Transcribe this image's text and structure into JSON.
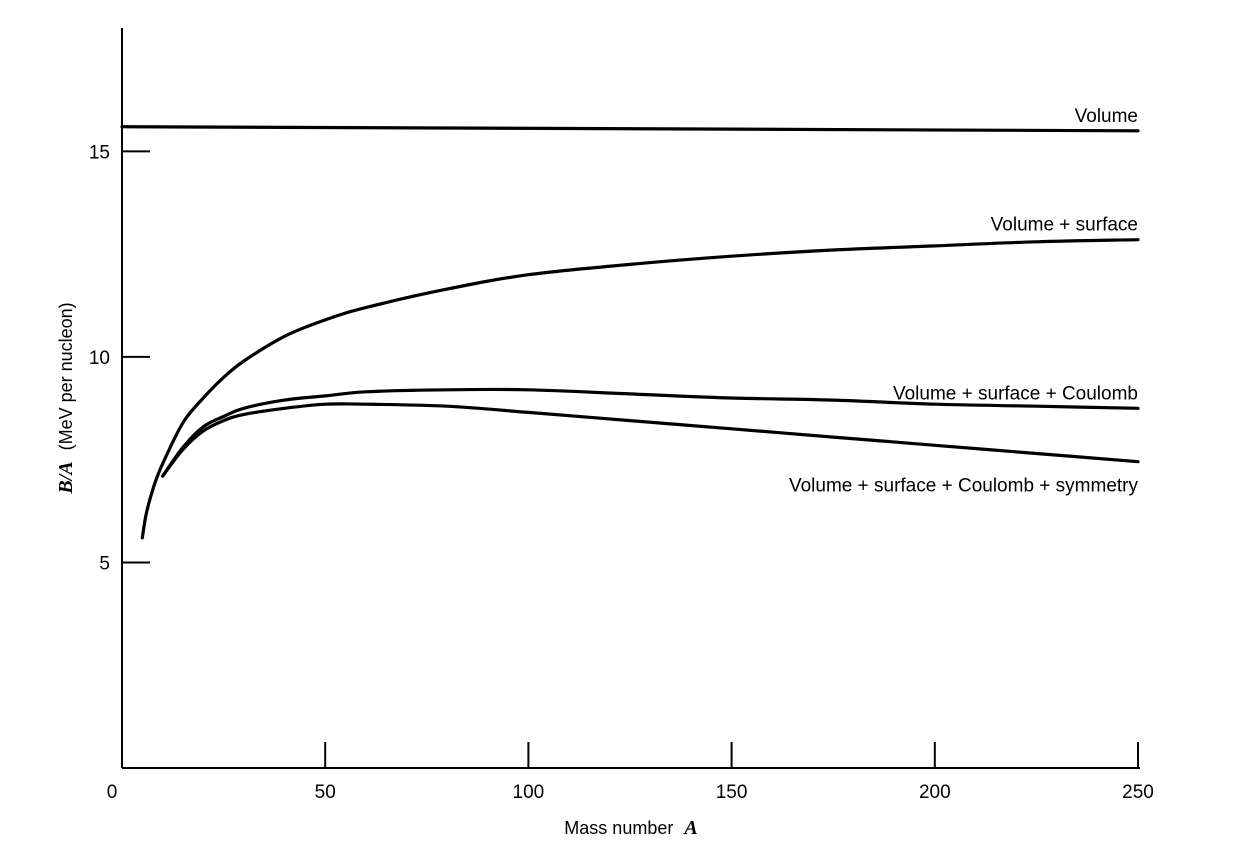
{
  "chart_data": {
    "type": "line",
    "title": "",
    "xlabel": {
      "text": "Mass number",
      "symbol": "A"
    },
    "ylabel": {
      "symbol": "B/A",
      "text": "(MeV per nucleon)"
    },
    "xlim": [
      0,
      250
    ],
    "ylim": [
      0,
      18
    ],
    "x_ticks": [
      0,
      50,
      100,
      150,
      200,
      250
    ],
    "y_ticks": [
      5,
      10,
      15
    ],
    "grid": false,
    "legend": "none",
    "series": [
      {
        "name": "Volume",
        "x": [
          0,
          250
        ],
        "y": [
          15.6,
          15.5
        ]
      },
      {
        "name": "Volume + surface",
        "x": [
          5,
          6,
          8,
          10,
          15,
          20,
          25,
          30,
          40,
          50,
          60,
          80,
          100,
          125,
          150,
          175,
          200,
          225,
          250
        ],
        "y": [
          5.6,
          6.2,
          6.9,
          7.4,
          8.4,
          9.0,
          9.5,
          9.9,
          10.5,
          10.9,
          11.2,
          11.65,
          12.0,
          12.25,
          12.45,
          12.6,
          12.7,
          12.8,
          12.85
        ]
      },
      {
        "name": "Volume + surface + Coulomb",
        "x": [
          10,
          15,
          20,
          25,
          30,
          40,
          50,
          60,
          80,
          100,
          125,
          150,
          175,
          200,
          225,
          250
        ],
        "y": [
          7.1,
          7.8,
          8.3,
          8.55,
          8.75,
          8.95,
          9.05,
          9.15,
          9.2,
          9.2,
          9.1,
          9.0,
          8.95,
          8.85,
          8.8,
          8.75
        ]
      },
      {
        "name": "Volume + surface + Coulomb + symmetry",
        "x": [
          10,
          15,
          20,
          25,
          30,
          40,
          50,
          60,
          80,
          100,
          125,
          150,
          175,
          200,
          225,
          250
        ],
        "y": [
          7.1,
          7.75,
          8.2,
          8.45,
          8.6,
          8.75,
          8.85,
          8.85,
          8.8,
          8.65,
          8.45,
          8.25,
          8.05,
          7.85,
          7.65,
          7.45
        ]
      }
    ],
    "annotations": [
      {
        "text": "Volume",
        "x": 250,
        "y": 15.5,
        "position": "above-end"
      },
      {
        "text": "Volume + surface",
        "x": 250,
        "y": 12.85,
        "position": "above-end"
      },
      {
        "text": "Volume + surface + Coulomb",
        "x": 250,
        "y": 8.75,
        "position": "above-end"
      },
      {
        "text": "Volume + surface + Coulomb + symmetry",
        "x": 250,
        "y": 7.45,
        "position": "below-end"
      }
    ]
  }
}
